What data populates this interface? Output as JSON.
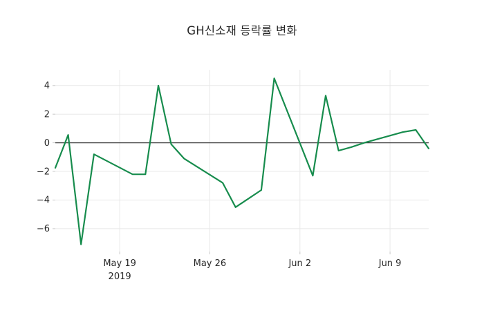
{
  "title": "GH신소재 등락률 변화",
  "chart_data": {
    "type": "line",
    "title": "GH신소재 등락률 변화",
    "xlabel": "",
    "ylabel": "",
    "grid": true,
    "legend": "none",
    "zero_line": true,
    "x": [
      "2019-05-14",
      "2019-05-15",
      "2019-05-16",
      "2019-05-17",
      "2019-05-20",
      "2019-05-21",
      "2019-05-22",
      "2019-05-23",
      "2019-05-24",
      "2019-05-27",
      "2019-05-28",
      "2019-05-29",
      "2019-05-30",
      "2019-05-31",
      "2019-06-03",
      "2019-06-04",
      "2019-06-05",
      "2019-06-06",
      "2019-06-07",
      "2019-06-10",
      "2019-06-11",
      "2019-06-12"
    ],
    "values": [
      -1.75,
      0.55,
      -7.1,
      -0.8,
      -2.2,
      -2.2,
      4.0,
      -0.1,
      -1.1,
      -2.8,
      -4.5,
      -3.9,
      -3.3,
      4.5,
      -2.3,
      3.3,
      -0.55,
      -0.3,
      0.0,
      0.75,
      0.9,
      -0.4
    ],
    "ylim": [
      -7.6,
      5.1
    ],
    "yticks": [
      4,
      2,
      0,
      -2,
      -4,
      -6
    ],
    "ytick_labels": [
      "4",
      "2",
      "0",
      "−2",
      "−4",
      "−6"
    ],
    "xticks": [
      {
        "date": "2019-05-19",
        "label": "May 19",
        "sublabel": "2019"
      },
      {
        "date": "2019-05-26",
        "label": "May 26",
        "sublabel": ""
      },
      {
        "date": "2019-06-02",
        "label": "Jun 2",
        "sublabel": ""
      },
      {
        "date": "2019-06-09",
        "label": "Jun 9",
        "sublabel": ""
      }
    ],
    "colors": {
      "line": "#178c4d",
      "grid": "#e8e8e8",
      "tick": "#c8c8c8",
      "zero_line": "#3d3d3d",
      "text": "#262626",
      "background": "#ffffff"
    }
  }
}
